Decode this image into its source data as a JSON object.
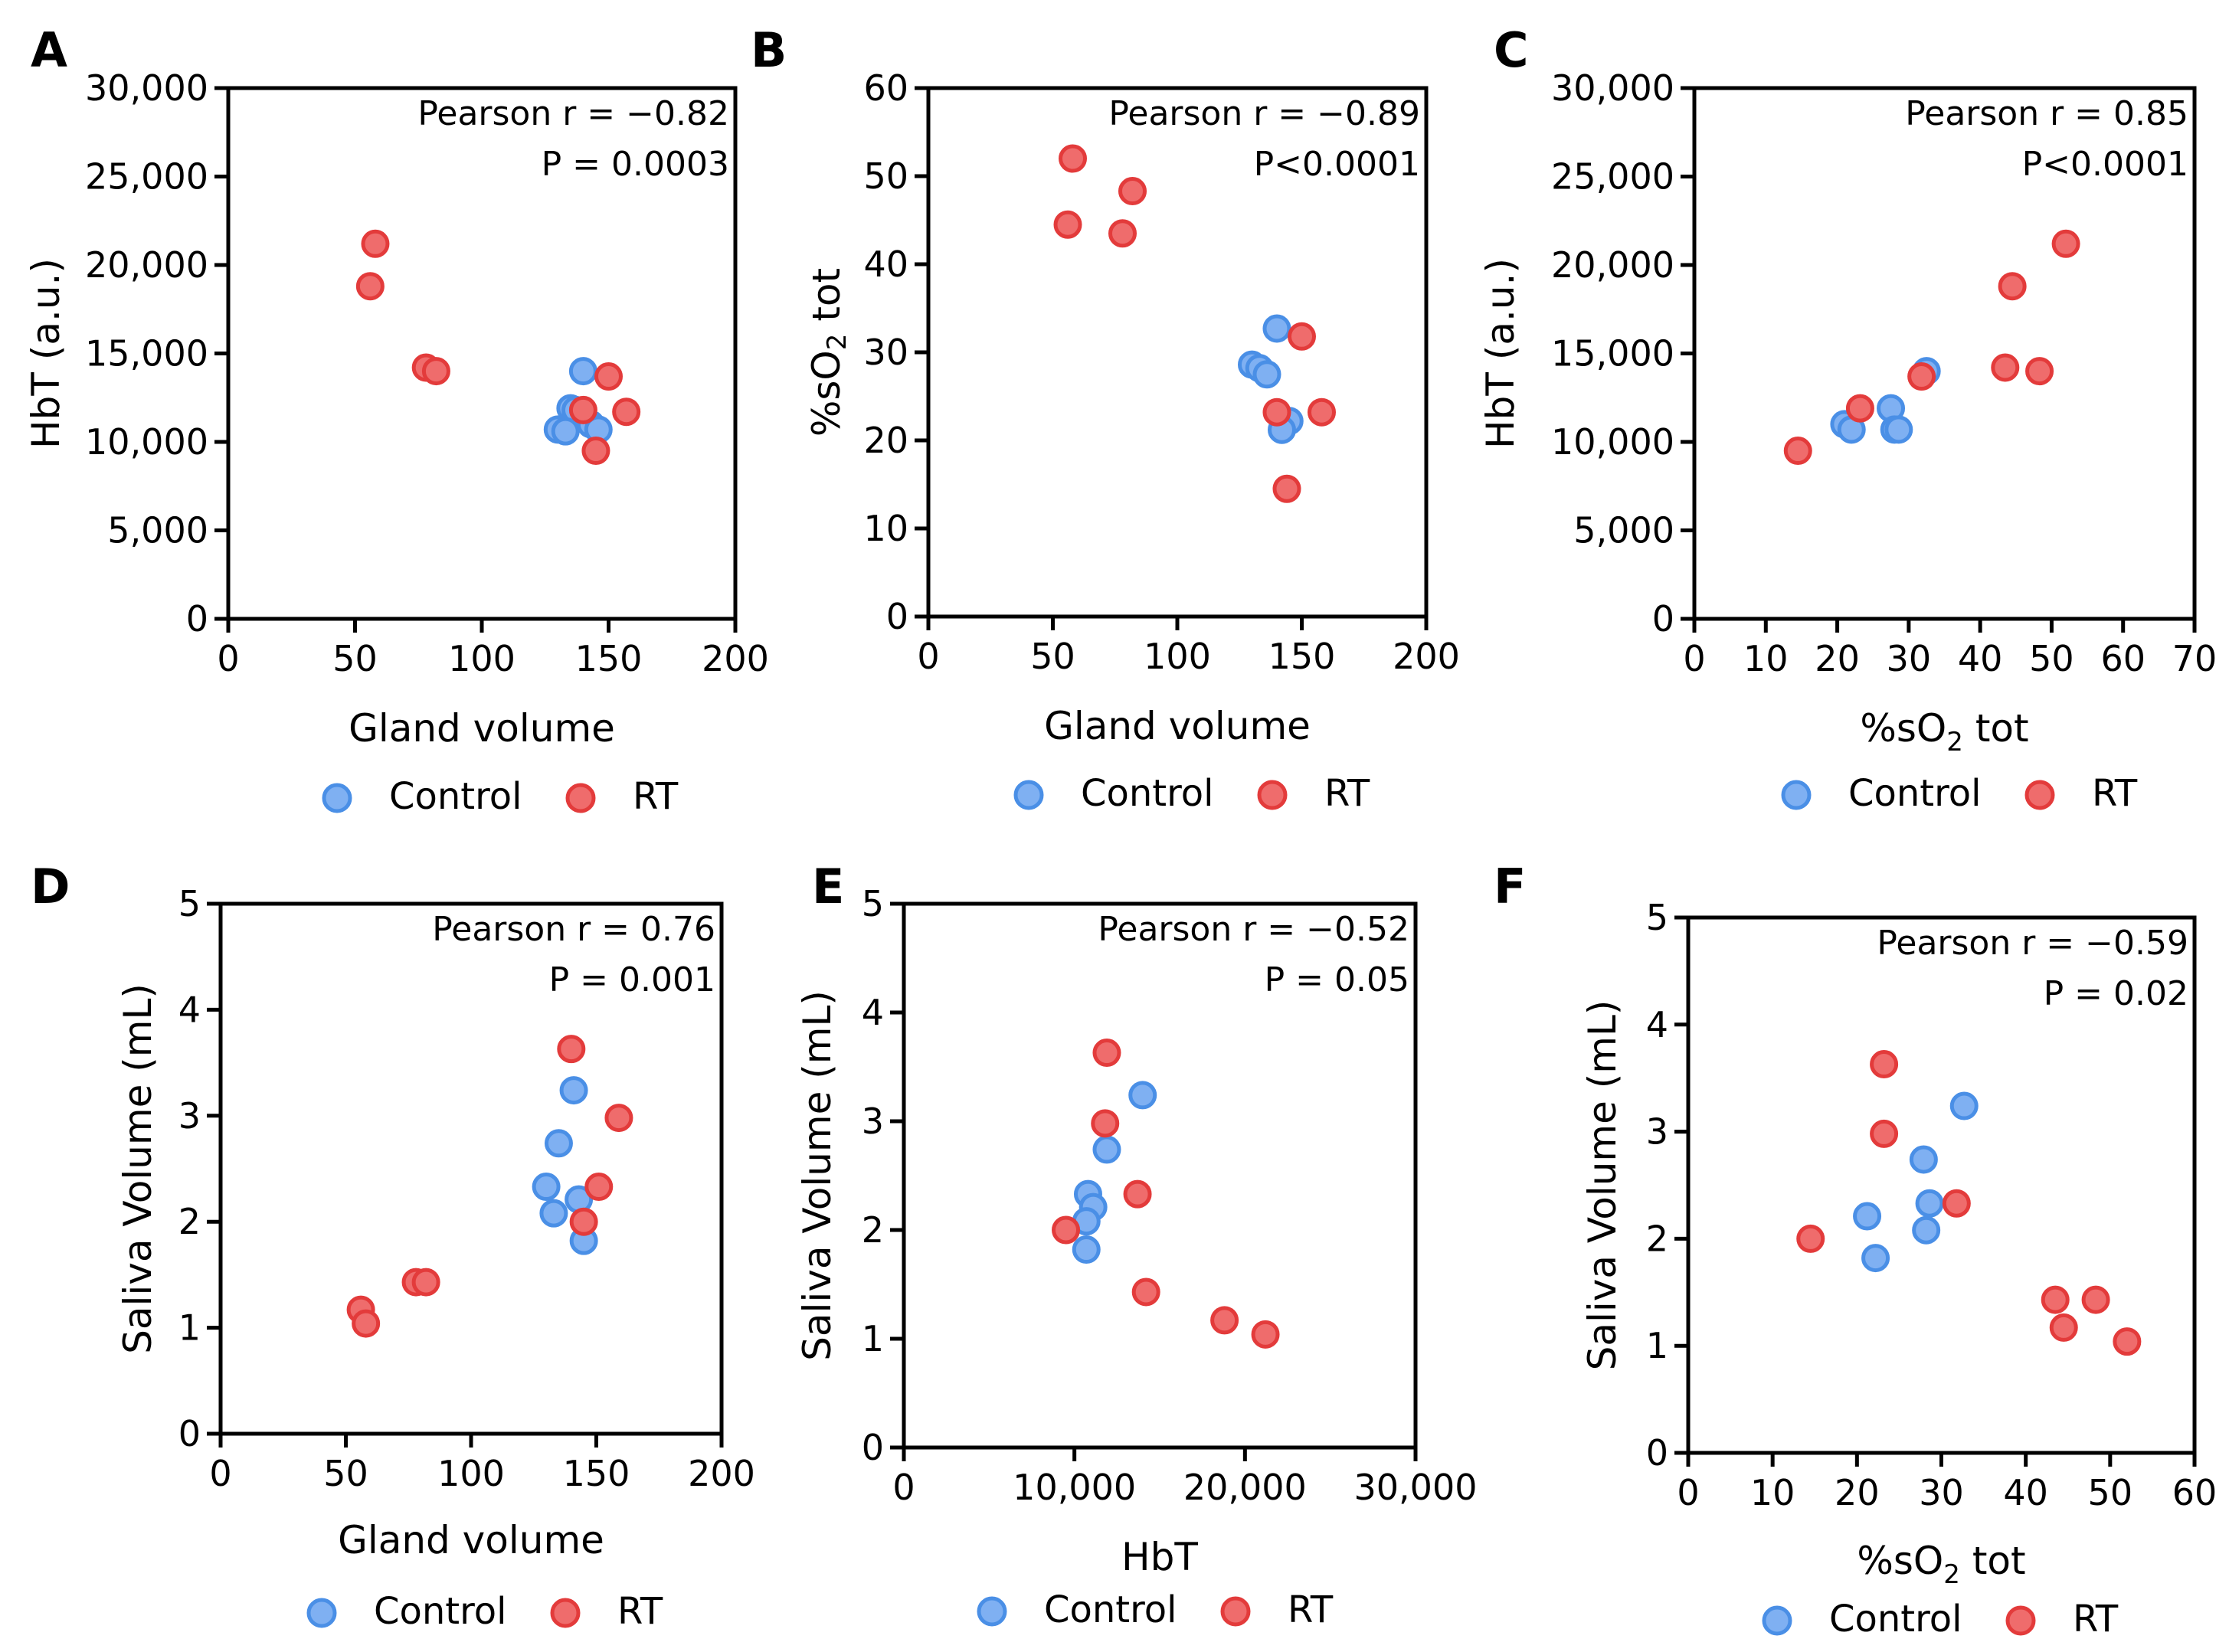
{
  "colors": {
    "control_fill": "#7fb0f2",
    "control_stroke": "#4a8fe6",
    "rt_fill": "#ef6c6c",
    "rt_stroke": "#e33b3b",
    "axis": "#000000"
  },
  "legend": {
    "control": "Control",
    "rt": "RT"
  },
  "chart_data": [
    {
      "id": "A",
      "type": "scatter",
      "panel": "A",
      "xlabel": "Gland volume",
      "ylabel": "HbT (a.u.)",
      "xlim": [
        0,
        200
      ],
      "ylim": [
        0,
        30000
      ],
      "xticks": [
        0,
        50,
        100,
        150,
        200
      ],
      "yticks": [
        0,
        5000,
        10000,
        15000,
        20000,
        25000,
        30000
      ],
      "xtick_labels": [
        "0",
        "50",
        "100",
        "150",
        "200"
      ],
      "ytick_labels": [
        "0",
        "5,000",
        "10,000",
        "15,000",
        "20,000",
        "25,000",
        "30,000"
      ],
      "stats": [
        "Pearson r = −0.82",
        "P = 0.0003"
      ],
      "series": [
        {
          "name": "Control",
          "points": [
            [
              140,
              14000
            ],
            [
              135,
              11900
            ],
            [
              137,
              11800
            ],
            [
              130,
              10700
            ],
            [
              133,
              10600
            ],
            [
              143,
              11000
            ],
            [
              146,
              10700
            ]
          ]
        },
        {
          "name": "RT",
          "points": [
            [
              58,
              21200
            ],
            [
              56,
              18800
            ],
            [
              78,
              14200
            ],
            [
              82,
              14000
            ],
            [
              150,
              13700
            ],
            [
              157,
              11700
            ],
            [
              140,
              11800
            ],
            [
              145,
              9500
            ]
          ]
        }
      ]
    },
    {
      "id": "B",
      "type": "scatter",
      "panel": "B",
      "xlabel": "Gland volume",
      "ylabel": "%sO",
      "ylabel_sub": "2",
      "ylabel_after": " tot",
      "xlim": [
        0,
        200
      ],
      "ylim": [
        0,
        60
      ],
      "xticks": [
        0,
        50,
        100,
        150,
        200
      ],
      "yticks": [
        0,
        10,
        20,
        30,
        40,
        50,
        60
      ],
      "xtick_labels": [
        "0",
        "50",
        "100",
        "150",
        "200"
      ],
      "ytick_labels": [
        "0",
        "10",
        "20",
        "30",
        "40",
        "50",
        "60"
      ],
      "stats": [
        "Pearson r = −0.89",
        "P<0.0001"
      ],
      "series": [
        {
          "name": "Control",
          "points": [
            [
              140,
              32.7
            ],
            [
              130,
              28.6
            ],
            [
              133,
              28.2
            ],
            [
              136,
              27.5
            ],
            [
              145,
              22.2
            ],
            [
              142,
              21.2
            ]
          ]
        },
        {
          "name": "RT",
          "points": [
            [
              58,
              52.0
            ],
            [
              82,
              48.3
            ],
            [
              56,
              44.5
            ],
            [
              78,
              43.5
            ],
            [
              150,
              31.8
            ],
            [
              140,
              23.2
            ],
            [
              158,
              23.2
            ],
            [
              144,
              14.5
            ]
          ]
        }
      ]
    },
    {
      "id": "C",
      "type": "scatter",
      "panel": "C",
      "xlabel": "%sO",
      "xlabel_sub": "2",
      "xlabel_after": " tot",
      "ylabel": "HbT (a.u.)",
      "xlim": [
        0,
        70
      ],
      "ylim": [
        0,
        30000
      ],
      "xticks": [
        0,
        10,
        20,
        30,
        40,
        50,
        60,
        70
      ],
      "yticks": [
        0,
        5000,
        10000,
        15000,
        20000,
        25000,
        30000
      ],
      "xtick_labels": [
        "0",
        "10",
        "20",
        "30",
        "40",
        "50",
        "60",
        "70"
      ],
      "ytick_labels": [
        "0",
        "5,000",
        "10,000",
        "15,000",
        "20,000",
        "25,000",
        "30,000"
      ],
      "stats": [
        "Pearson r = 0.85",
        "P<0.0001"
      ],
      "series": [
        {
          "name": "Control",
          "points": [
            [
              32.5,
              14000
            ],
            [
              27.5,
              11900
            ],
            [
              28.0,
              10700
            ],
            [
              28.6,
              10700
            ],
            [
              21.0,
              11000
            ],
            [
              22.0,
              10700
            ]
          ]
        },
        {
          "name": "RT",
          "points": [
            [
              52.0,
              21200
            ],
            [
              44.5,
              18800
            ],
            [
              43.5,
              14200
            ],
            [
              48.3,
              14000
            ],
            [
              31.8,
              13700
            ],
            [
              23.2,
              11900
            ],
            [
              14.5,
              9500
            ]
          ]
        }
      ]
    },
    {
      "id": "D",
      "type": "scatter",
      "panel": "D",
      "xlabel": "Gland volume",
      "ylabel": "Saliva Volume (mL)",
      "xlim": [
        0,
        200
      ],
      "ylim": [
        0,
        5
      ],
      "xticks": [
        0,
        50,
        100,
        150,
        200
      ],
      "yticks": [
        0,
        1,
        2,
        3,
        4,
        5
      ],
      "xtick_labels": [
        "0",
        "50",
        "100",
        "150",
        "200"
      ],
      "ytick_labels": [
        "0",
        "1",
        "2",
        "3",
        "4",
        "5"
      ],
      "stats": [
        "Pearson r = 0.76",
        "P = 0.001"
      ],
      "series": [
        {
          "name": "Control",
          "points": [
            [
              141,
              3.24
            ],
            [
              135,
              2.74
            ],
            [
              130,
              2.33
            ],
            [
              133,
              2.08
            ],
            [
              143,
              2.21
            ],
            [
              145,
              1.82
            ]
          ]
        },
        {
          "name": "RT",
          "points": [
            [
              140,
              3.63
            ],
            [
              159,
              2.98
            ],
            [
              151,
              2.33
            ],
            [
              145,
              2.0
            ],
            [
              78,
              1.43
            ],
            [
              82,
              1.43
            ],
            [
              56,
              1.17
            ],
            [
              58,
              1.04
            ]
          ]
        }
      ]
    },
    {
      "id": "E",
      "type": "scatter",
      "panel": "E",
      "xlabel": "HbT",
      "ylabel": "Saliva Volume (mL)",
      "xlim": [
        0,
        30000
      ],
      "ylim": [
        0,
        5
      ],
      "xticks": [
        0,
        10000,
        20000,
        30000
      ],
      "yticks": [
        0,
        1,
        2,
        3,
        4,
        5
      ],
      "xtick_labels": [
        "0",
        "10,000",
        "20,000",
        "30,000"
      ],
      "ytick_labels": [
        "0",
        "1",
        "2",
        "3",
        "4",
        "5"
      ],
      "stats": [
        "Pearson r = −0.52",
        "P = 0.05"
      ],
      "series": [
        {
          "name": "Control",
          "points": [
            [
              14000,
              3.24
            ],
            [
              11900,
              2.74
            ],
            [
              10800,
              2.33
            ],
            [
              11100,
              2.21
            ],
            [
              10700,
              2.08
            ],
            [
              10700,
              1.82
            ]
          ]
        },
        {
          "name": "RT",
          "points": [
            [
              11900,
              3.63
            ],
            [
              11800,
              2.98
            ],
            [
              13700,
              2.33
            ],
            [
              9500,
              2.0
            ],
            [
              14200,
              1.43
            ],
            [
              18800,
              1.17
            ],
            [
              21200,
              1.04
            ]
          ]
        }
      ]
    },
    {
      "id": "F",
      "type": "scatter",
      "panel": "F",
      "xlabel": "%sO",
      "xlabel_sub": "2",
      "xlabel_after": " tot",
      "ylabel": "Saliva Volume (mL)",
      "xlim": [
        0,
        60
      ],
      "ylim": [
        0,
        5
      ],
      "xticks": [
        0,
        10,
        20,
        30,
        40,
        50,
        60
      ],
      "yticks": [
        0,
        1,
        2,
        3,
        4,
        5
      ],
      "xtick_labels": [
        "0",
        "10",
        "20",
        "30",
        "40",
        "50",
        "60"
      ],
      "ytick_labels": [
        "0",
        "1",
        "2",
        "3",
        "4",
        "5"
      ],
      "stats": [
        "Pearson r = −0.59",
        "P = 0.02"
      ],
      "series": [
        {
          "name": "Control",
          "points": [
            [
              32.7,
              3.24
            ],
            [
              27.9,
              2.74
            ],
            [
              28.6,
              2.33
            ],
            [
              28.2,
              2.08
            ],
            [
              21.2,
              2.21
            ],
            [
              22.2,
              1.82
            ]
          ]
        },
        {
          "name": "RT",
          "points": [
            [
              23.2,
              3.63
            ],
            [
              23.2,
              2.98
            ],
            [
              31.8,
              2.33
            ],
            [
              14.5,
              2.0
            ],
            [
              43.5,
              1.43
            ],
            [
              48.3,
              1.43
            ],
            [
              44.5,
              1.17
            ],
            [
              52.0,
              1.04
            ]
          ]
        }
      ]
    }
  ]
}
